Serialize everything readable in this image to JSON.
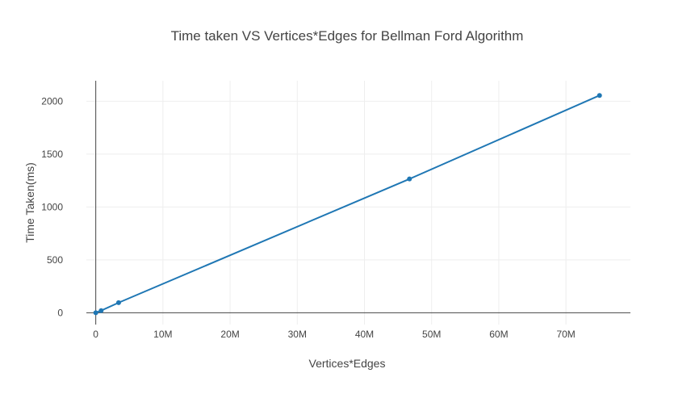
{
  "chart_data": {
    "type": "line",
    "title": "Time taken VS Vertices*Edges  for Bellman Ford Algorithm",
    "xlabel": "Vertices*Edges",
    "ylabel": "Time Taken(ms)",
    "xlim": [
      -1400000,
      79600000
    ],
    "ylim": [
      -112,
      2194
    ],
    "x_ticks": [
      0,
      10000000,
      20000000,
      30000000,
      40000000,
      50000000,
      60000000,
      70000000
    ],
    "x_tick_labels": [
      "0",
      "10M",
      "20M",
      "30M",
      "40M",
      "50M",
      "60M",
      "70M"
    ],
    "y_ticks": [
      0,
      500,
      1000,
      1500,
      2000
    ],
    "y_tick_labels": [
      "0",
      "500",
      "1000",
      "1500",
      "2000"
    ],
    "grid": true,
    "series": [
      {
        "color": "#1f77b4",
        "x": [
          0,
          800000,
          3400000,
          46700000,
          75000000
        ],
        "y": [
          0,
          20,
          95,
          1265,
          2055
        ]
      }
    ]
  }
}
